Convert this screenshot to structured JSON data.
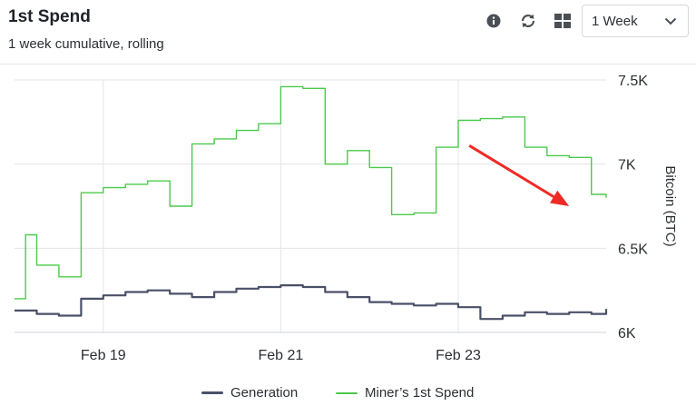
{
  "header": {
    "title": "1st Spend",
    "subtitle": "1 week cumulative, rolling",
    "period_select": {
      "value": "1 Week"
    },
    "icons": [
      "info-icon",
      "refresh-icon",
      "grid-icon",
      "chevron-down-icon"
    ]
  },
  "colors": {
    "generation": "#4a5068",
    "miners_first_spend": "#4cc94c",
    "grid": "#e3e5e8",
    "arrow": "#ee2a24"
  },
  "chart_data": {
    "type": "line",
    "ylabel": "Bitcoin (BTC)",
    "ylim": [
      6000,
      7500
    ],
    "yticks": [
      6000,
      6500,
      7000,
      7500
    ],
    "ytick_labels": [
      "6K",
      "6.5K",
      "7K",
      "7.5K"
    ],
    "x_range": [
      "Feb 18 00:00",
      "Feb 24 16:00"
    ],
    "xticks": [
      "Feb 19",
      "Feb 21",
      "Feb 23"
    ],
    "grid": true,
    "legend_position": "bottom",
    "series": [
      {
        "name": "Generation",
        "x": [
          "Feb 18 00:00",
          "Feb 18 06:00",
          "Feb 18 12:00",
          "Feb 18 18:00",
          "Feb 19 00:00",
          "Feb 19 06:00",
          "Feb 19 12:00",
          "Feb 19 18:00",
          "Feb 20 00:00",
          "Feb 20 06:00",
          "Feb 20 12:00",
          "Feb 20 18:00",
          "Feb 21 00:00",
          "Feb 21 06:00",
          "Feb 21 12:00",
          "Feb 21 18:00",
          "Feb 22 00:00",
          "Feb 22 06:00",
          "Feb 22 12:00",
          "Feb 22 18:00",
          "Feb 23 00:00",
          "Feb 23 06:00",
          "Feb 23 12:00",
          "Feb 23 18:00",
          "Feb 24 00:00",
          "Feb 24 06:00",
          "Feb 24 12:00",
          "Feb 24 16:00"
        ],
        "values": [
          6130,
          6110,
          6100,
          6200,
          6220,
          6240,
          6250,
          6230,
          6210,
          6240,
          6260,
          6270,
          6280,
          6270,
          6240,
          6210,
          6180,
          6170,
          6160,
          6170,
          6150,
          6080,
          6100,
          6120,
          6110,
          6120,
          6110,
          6140
        ]
      },
      {
        "name": "Miner’s 1st Spend",
        "x": [
          "Feb 18 00:00",
          "Feb 18 03:00",
          "Feb 18 06:00",
          "Feb 18 12:00",
          "Feb 18 18:00",
          "Feb 19 00:00",
          "Feb 19 06:00",
          "Feb 19 12:00",
          "Feb 19 18:00",
          "Feb 20 00:00",
          "Feb 20 06:00",
          "Feb 20 12:00",
          "Feb 20 18:00",
          "Feb 21 00:00",
          "Feb 21 06:00",
          "Feb 21 12:00",
          "Feb 21 18:00",
          "Feb 22 00:00",
          "Feb 22 06:00",
          "Feb 22 12:00",
          "Feb 22 18:00",
          "Feb 23 00:00",
          "Feb 23 06:00",
          "Feb 23 12:00",
          "Feb 23 18:00",
          "Feb 24 00:00",
          "Feb 24 06:00",
          "Feb 24 12:00",
          "Feb 24 16:00"
        ],
        "values": [
          6200,
          6580,
          6400,
          6330,
          6830,
          6860,
          6880,
          6900,
          6750,
          7120,
          7150,
          7200,
          7240,
          7460,
          7450,
          7000,
          7080,
          6980,
          6700,
          6710,
          7100,
          7260,
          7270,
          7280,
          7100,
          7050,
          7040,
          6820,
          6800
        ]
      }
    ],
    "annotations": [
      {
        "type": "arrow",
        "from_x": "Feb 23 03:00",
        "from_y": 7110,
        "to_x": "Feb 24 06:00",
        "to_y": 6750
      }
    ]
  }
}
